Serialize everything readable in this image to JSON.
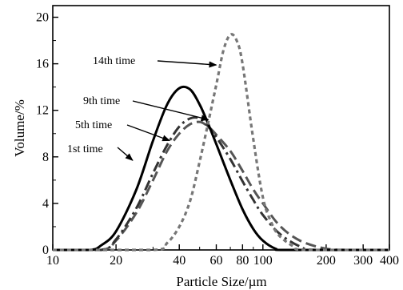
{
  "chart_data": {
    "type": "line",
    "xlabel": "Particle Size/µm",
    "ylabel": "Volume/%",
    "x_scale": "log",
    "xlim": [
      10,
      400
    ],
    "ylim": [
      0,
      21
    ],
    "x_ticks": [
      10,
      20,
      40,
      60,
      80,
      100,
      200,
      300,
      400
    ],
    "x_tick_labels": [
      "10",
      "20",
      "40",
      "60",
      "80",
      "100",
      "200",
      "300",
      "400"
    ],
    "y_ticks": [
      0,
      4,
      8,
      12,
      16,
      20
    ],
    "y_tick_labels": [
      "0",
      "4",
      "8",
      "12",
      "16",
      "20"
    ],
    "grid": false,
    "legend": "none",
    "series": [
      {
        "name": "1st time",
        "style": "dashed",
        "color": "#555555",
        "x": [
          17,
          20,
          25,
          30,
          35,
          40,
          45,
          50,
          55,
          60,
          70,
          80,
          90,
          100,
          120,
          150,
          200,
          250
        ],
        "y": [
          0,
          0.8,
          3.2,
          6.0,
          8.5,
          10.0,
          10.8,
          11.0,
          10.6,
          9.9,
          8.5,
          6.8,
          5.2,
          4.0,
          2.1,
          0.8,
          0.1,
          0
        ]
      },
      {
        "name": "5th time",
        "style": "dash-dot",
        "color": "#333333",
        "x": [
          17,
          20,
          25,
          30,
          35,
          40,
          45,
          50,
          55,
          60,
          70,
          80,
          90,
          100,
          120,
          150,
          180
        ],
        "y": [
          0,
          0.9,
          3.6,
          6.6,
          9.0,
          10.6,
          11.3,
          11.3,
          10.6,
          9.7,
          7.8,
          5.9,
          4.3,
          3.0,
          1.4,
          0.3,
          0
        ]
      },
      {
        "name": "9th time",
        "style": "solid",
        "color": "#000000",
        "x": [
          15,
          17,
          20,
          25,
          30,
          35,
          40,
          45,
          50,
          55,
          60,
          70,
          80,
          90,
          100,
          115,
          130
        ],
        "y": [
          0,
          0.4,
          1.6,
          5.2,
          9.4,
          12.5,
          13.9,
          13.8,
          12.5,
          10.8,
          9.1,
          6.0,
          3.5,
          1.8,
          0.8,
          0.1,
          0
        ]
      },
      {
        "name": "14th time",
        "style": "dotted",
        "color": "#777777",
        "x": [
          30,
          35,
          40,
          45,
          50,
          55,
          60,
          65,
          70,
          75,
          80,
          90,
          100,
          110,
          120,
          140,
          160
        ],
        "y": [
          0,
          0.6,
          2.0,
          4.2,
          7.6,
          11.0,
          14.2,
          17.2,
          18.5,
          18.0,
          16.0,
          9.5,
          4.5,
          2.3,
          1.2,
          0.3,
          0
        ]
      }
    ],
    "annotations": [
      {
        "text": "14th time",
        "arrow_to": [
          60,
          15.9
        ]
      },
      {
        "text": "9th time",
        "arrow_to": [
          55,
          11.2
        ]
      },
      {
        "text": "5th time",
        "arrow_to": [
          36,
          9.4
        ]
      },
      {
        "text": "1st time",
        "arrow_to": [
          24,
          7.7
        ]
      }
    ]
  }
}
